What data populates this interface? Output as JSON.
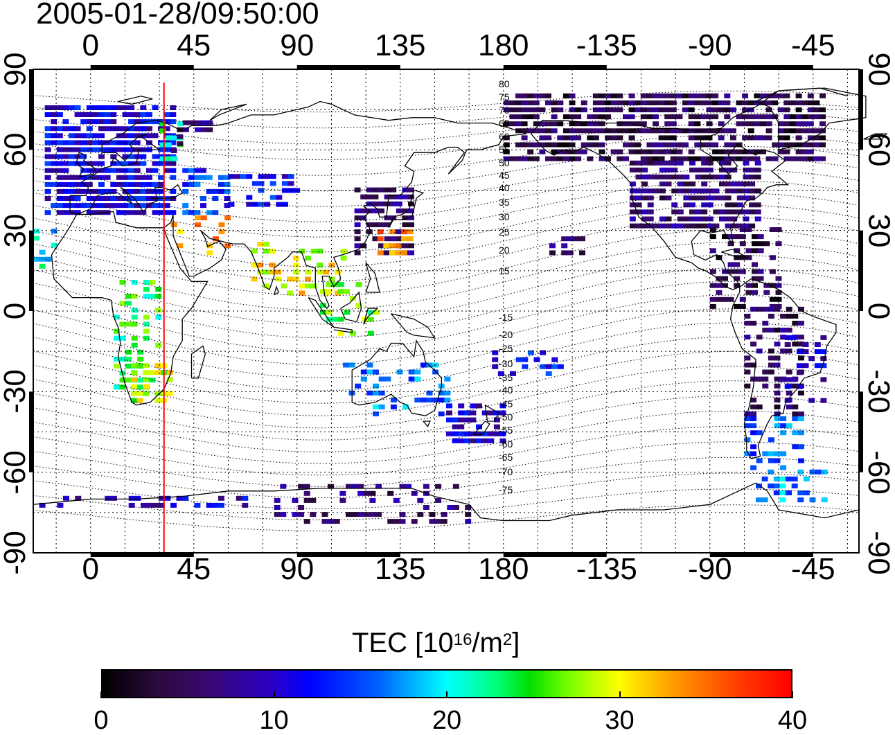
{
  "title": "2005-01-28/09:50:00",
  "lon_ticks": [
    "0",
    "45",
    "90",
    "135",
    "180",
    "-135",
    "-90",
    "-45"
  ],
  "lat_ticks": [
    "90",
    "60",
    "30",
    "0",
    "-30",
    "-60",
    "-90"
  ],
  "contour_labels_north": [
    "80",
    "75",
    "70",
    "65",
    "60",
    "55",
    "50",
    "45",
    "40",
    "35",
    "30",
    "25",
    "20",
    "15"
  ],
  "contour_labels_south": [
    "-15",
    "-20",
    "-25",
    "-30",
    "-35",
    "-40",
    "-45",
    "-50",
    "-55",
    "-60",
    "-65",
    "-70",
    "-75"
  ],
  "colorbar": {
    "title_prefix": "TEC  [10",
    "title_exp1": "16",
    "title_mid": "/m",
    "title_exp2": "2",
    "title_suffix": "]",
    "labels": [
      "0",
      "10",
      "20",
      "30",
      "40"
    ],
    "min": 0,
    "max": 40
  },
  "terminator_line_lon": 32,
  "colors": {
    "terminator": "#ff0000",
    "frame": "#000000"
  }
}
